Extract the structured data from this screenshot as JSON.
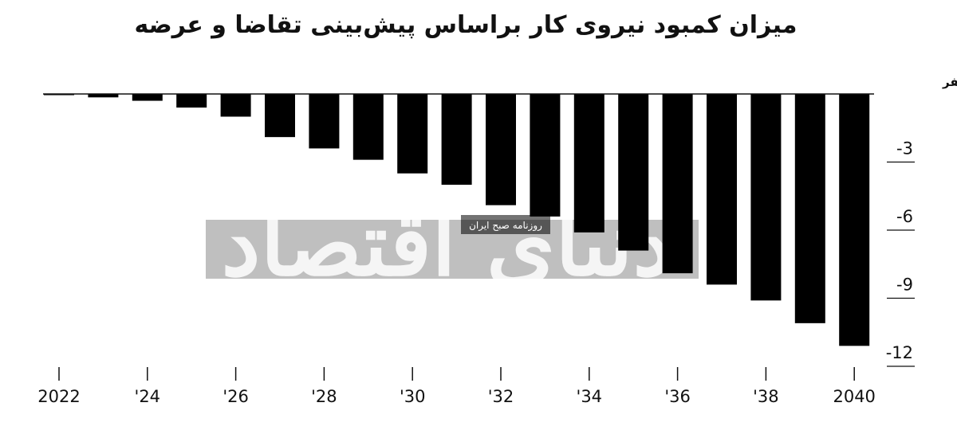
{
  "title": "میزان کمبود نیروی کار براساس پیش‌بینی تقاضا  و عرضه",
  "watermark": {
    "text": "دنیای اقتصاد",
    "tagline": "روزنامه صبح ایران"
  },
  "chart_data": {
    "type": "bar",
    "title": "میزان کمبود نیروی کار براساس پیش‌بینی تقاضا  و عرضه",
    "unit_label": "میلیون نفر",
    "x": [
      2022,
      2023,
      2024,
      2025,
      2026,
      2027,
      2028,
      2029,
      2030,
      2031,
      2032,
      2033,
      2034,
      2035,
      2036,
      2037,
      2038,
      2039,
      2040
    ],
    "x_tick_labels": [
      {
        "x": 2022,
        "label": "2022"
      },
      {
        "x": 2024,
        "label": "'24"
      },
      {
        "x": 2026,
        "label": "'26"
      },
      {
        "x": 2028,
        "label": "'28"
      },
      {
        "x": 2030,
        "label": "'30"
      },
      {
        "x": 2032,
        "label": "'32"
      },
      {
        "x": 2034,
        "label": "'34"
      },
      {
        "x": 2036,
        "label": "'36"
      },
      {
        "x": 2038,
        "label": "'38"
      },
      {
        "x": 2040,
        "label": "2040"
      }
    ],
    "values": [
      -0.05,
      -0.15,
      -0.3,
      -0.6,
      -1.0,
      -1.9,
      -2.4,
      -2.9,
      -3.5,
      -4.0,
      -4.9,
      -5.4,
      -6.1,
      -6.9,
      -7.9,
      -8.4,
      -9.1,
      -10.1,
      -11.1
    ],
    "y_ticks": [
      {
        "value": -3,
        "label": "-3"
      },
      {
        "value": -6,
        "label": "-6"
      },
      {
        "value": -9,
        "label": "-9"
      },
      {
        "value": -12,
        "label": "-12"
      }
    ],
    "ylim": [
      -12,
      0
    ],
    "y_axis_side": "right",
    "bar_color": "#000000",
    "grid": false
  }
}
